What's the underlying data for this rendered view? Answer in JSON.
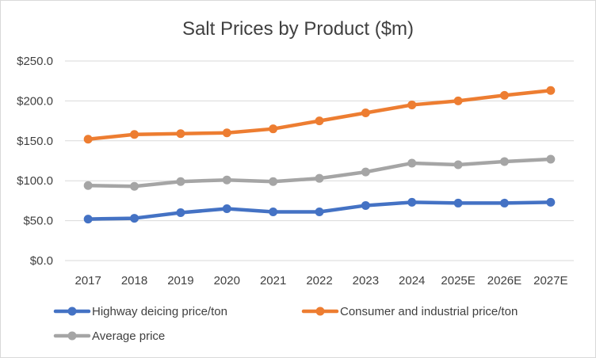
{
  "chart_data": {
    "type": "line",
    "title": "Salt Prices by Product ($m)",
    "xlabel": "",
    "ylabel": "",
    "categories": [
      "2017",
      "2018",
      "2019",
      "2020",
      "2021",
      "2022",
      "2023",
      "2024",
      "2025E",
      "2026E",
      "2027E"
    ],
    "ylim": [
      0,
      250
    ],
    "yticks": [
      0,
      50,
      100,
      150,
      200,
      250
    ],
    "ytick_labels": [
      "$0.0",
      "$50.0",
      "$100.0",
      "$150.0",
      "$200.0",
      "$250.0"
    ],
    "grid": true,
    "legend_position": "bottom",
    "series": [
      {
        "name": "Highway deicing price/ton",
        "color": "#4472c4",
        "values": [
          52,
          53,
          60,
          65,
          61,
          61,
          69,
          73,
          72,
          72,
          73
        ]
      },
      {
        "name": "Consumer and industrial price/ton",
        "color": "#ed7d31",
        "values": [
          152,
          158,
          159,
          160,
          165,
          175,
          185,
          195,
          200,
          207,
          213
        ]
      },
      {
        "name": "Average price",
        "color": "#a5a5a5",
        "values": [
          94,
          93,
          99,
          101,
          99,
          103,
          111,
          122,
          120,
          124,
          127
        ]
      }
    ]
  }
}
